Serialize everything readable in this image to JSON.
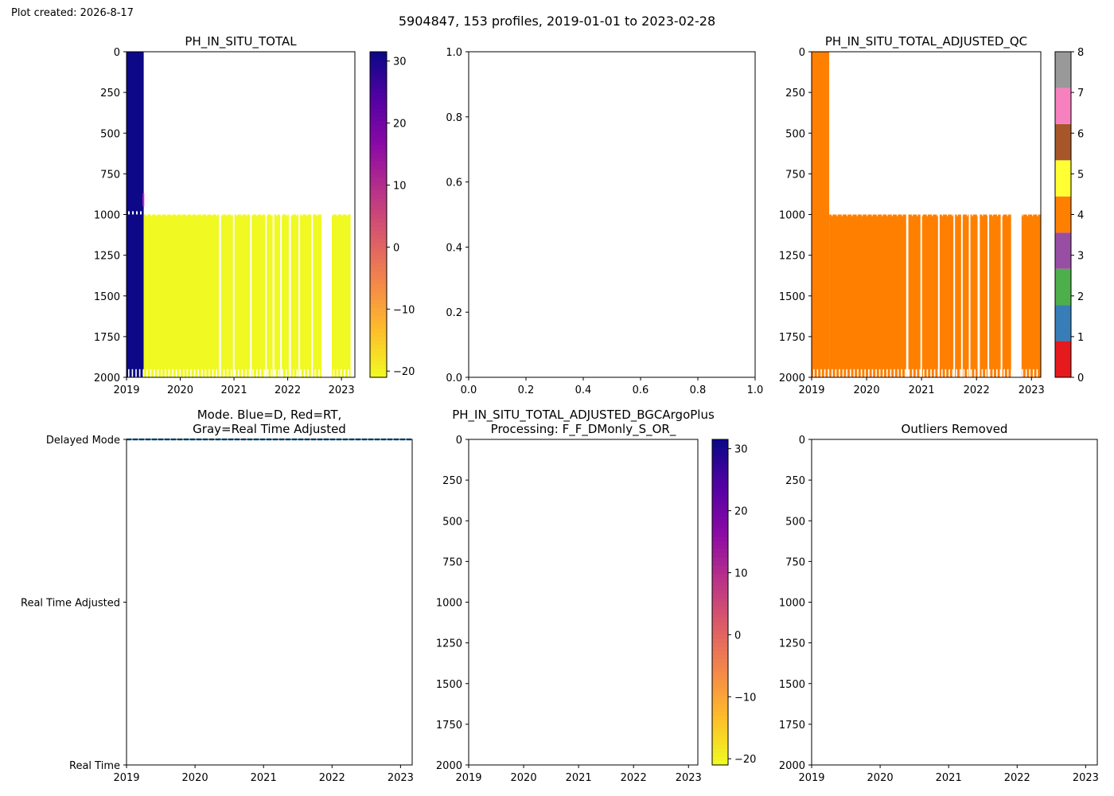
{
  "header": {
    "created": "Plot created: 2026-8-17",
    "suptitle": "5904847, 153 profiles, 2019-01-01 to 2023-02-28"
  },
  "chart_data": [
    {
      "id": "raw",
      "type": "heatmap",
      "title": "PH_IN_SITU_TOTAL",
      "xlim": [
        2019.0,
        2023.25
      ],
      "ylim": [
        2000,
        0
      ],
      "x_ticks": [
        "2019",
        "2020",
        "2021",
        "2022",
        "2023"
      ],
      "y_ticks": [
        "0",
        "250",
        "500",
        "750",
        "1000",
        "1250",
        "1500",
        "1750",
        "2000"
      ],
      "colormap": "plasma_r",
      "colorbar": {
        "range": [
          -21,
          31.5
        ],
        "ticks": [
          "30",
          "20",
          "10",
          "0",
          "−10",
          "−20"
        ],
        "tick_values": [
          30,
          20,
          10,
          0,
          -10,
          -20
        ]
      },
      "blocks": [
        {
          "x": [
            2019.0,
            2019.32
          ],
          "depth": [
            0,
            2000
          ],
          "value": 31.5
        },
        {
          "x": [
            2019.32,
            2023.17
          ],
          "depth": [
            1000,
            2000
          ],
          "value": -21
        }
      ],
      "early_profile_max_depth": 980,
      "late_profile_min_depth": 1000,
      "late_profile_max_depth": 1950,
      "gaps": [
        [
          2020.72,
          2020.76
        ],
        [
          2020.98,
          2021.0
        ],
        [
          2021.3,
          2021.31
        ],
        [
          2021.58,
          2021.6
        ],
        [
          2021.72,
          2021.74
        ],
        [
          2021.86,
          2021.87
        ],
        [
          2022.02,
          2022.06
        ],
        [
          2022.2,
          2022.23
        ],
        [
          2022.44,
          2022.47
        ],
        [
          2022.63,
          2022.82
        ]
      ]
    },
    {
      "id": "empty",
      "type": "scatter",
      "title": "",
      "xlim": [
        0.0,
        1.0
      ],
      "ylim": [
        0.0,
        1.0
      ],
      "x_ticks": [
        "0.0",
        "0.2",
        "0.4",
        "0.6",
        "0.8",
        "1.0"
      ],
      "y_ticks": [
        "0.0",
        "0.2",
        "0.4",
        "0.6",
        "0.8",
        "1.0"
      ],
      "series": []
    },
    {
      "id": "qc",
      "type": "heatmap",
      "title": "PH_IN_SITU_TOTAL_ADJUSTED_QC",
      "xlim": [
        2019.0,
        2023.17
      ],
      "ylim": [
        2000,
        0
      ],
      "x_ticks": [
        "2019",
        "2020",
        "2021",
        "2022",
        "2023"
      ],
      "y_ticks": [
        "0",
        "250",
        "500",
        "750",
        "1000",
        "1250",
        "1500",
        "1750",
        "2000"
      ],
      "colorbar": {
        "range": [
          0,
          8
        ],
        "ticks": [
          "8",
          "7",
          "6",
          "5",
          "4",
          "3",
          "2",
          "1",
          "0"
        ],
        "tick_values": [
          8,
          7,
          6,
          5,
          4,
          3,
          2,
          1,
          0
        ],
        "colors": [
          "#e41a1c",
          "#377eb8",
          "#4daf4a",
          "#984ea3",
          "#ff7f00",
          "#ffff33",
          "#a65628",
          "#f781bf",
          "#999999"
        ]
      },
      "blocks": [
        {
          "x": [
            2019.0,
            2019.32
          ],
          "depth": [
            0,
            2000
          ],
          "value": 4
        },
        {
          "x": [
            2019.32,
            2023.17
          ],
          "depth": [
            1000,
            2000
          ],
          "value": 4
        }
      ],
      "late_profile_min_depth": 1000,
      "late_profile_max_depth": 1950,
      "gaps": [
        [
          2020.72,
          2020.76
        ],
        [
          2020.98,
          2021.0
        ],
        [
          2021.3,
          2021.31
        ],
        [
          2021.58,
          2021.6
        ],
        [
          2021.72,
          2021.74
        ],
        [
          2021.86,
          2021.87
        ],
        [
          2022.02,
          2022.06
        ],
        [
          2022.2,
          2022.23
        ],
        [
          2022.44,
          2022.47
        ],
        [
          2022.63,
          2022.82
        ]
      ]
    },
    {
      "id": "mode",
      "type": "line",
      "title": "Mode. Blue=D, Red=RT,",
      "subtitle": "Gray=Real Time Adjusted",
      "xlim": [
        2019.0,
        2023.17
      ],
      "ylim": [
        0,
        2
      ],
      "x_ticks": [
        "2019",
        "2020",
        "2021",
        "2022",
        "2023"
      ],
      "y_ticks": [
        "Delayed Mode",
        "Real Time Adjusted",
        "Real Time"
      ],
      "y_tick_values": [
        2,
        1,
        0
      ],
      "series": [
        {
          "color": "#1f77b4",
          "style": "dashed",
          "x": [
            2019.0,
            2023.17
          ],
          "y": [
            2,
            2
          ]
        }
      ]
    },
    {
      "id": "adjusted",
      "type": "heatmap",
      "title": "PH_IN_SITU_TOTAL_ADJUSTED_BGCArgoPlus",
      "subtitle": "Processing: F_F_DMonly_S_OR_",
      "xlim": [
        2019.0,
        2023.17
      ],
      "ylim": [
        2000,
        0
      ],
      "x_ticks": [
        "2019",
        "2020",
        "2021",
        "2022",
        "2023"
      ],
      "y_ticks": [
        "0",
        "250",
        "500",
        "750",
        "1000",
        "1250",
        "1500",
        "1750",
        "2000"
      ],
      "colormap": "plasma_r",
      "colorbar": {
        "range": [
          -21,
          31.5
        ],
        "ticks": [
          "30",
          "20",
          "10",
          "0",
          "−10",
          "−20"
        ],
        "tick_values": [
          30,
          20,
          10,
          0,
          -10,
          -20
        ]
      },
      "blocks": []
    },
    {
      "id": "outliers",
      "type": "scatter",
      "title": "Outliers Removed",
      "xlim": [
        2019.0,
        2023.17
      ],
      "ylim": [
        2000,
        0
      ],
      "x_ticks": [
        "2019",
        "2020",
        "2021",
        "2022",
        "2023"
      ],
      "y_ticks": [
        "0",
        "250",
        "500",
        "750",
        "1000",
        "1250",
        "1500",
        "1750",
        "2000"
      ],
      "series": []
    }
  ]
}
